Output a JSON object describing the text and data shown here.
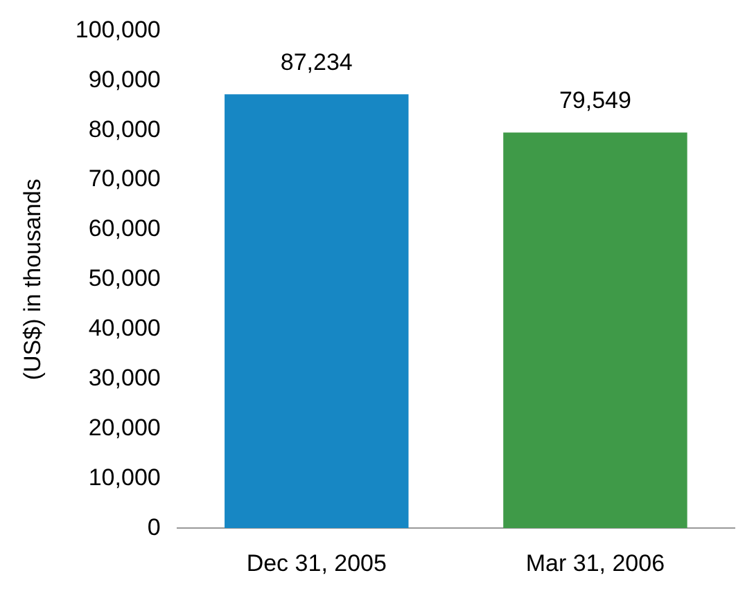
{
  "chart_data": {
    "type": "bar",
    "ylabel": "(US$) in thousands",
    "categories": [
      "Dec 31, 2005",
      "Mar 31, 2006"
    ],
    "values": [
      87234,
      79549
    ],
    "value_labels": [
      "87,234",
      "79,549"
    ],
    "colors": [
      "#1787c4",
      "#3f9a48"
    ],
    "ylim": [
      0,
      100000
    ],
    "yticks": [
      0,
      {
        "value": 10000,
        "label": "10,000"
      },
      {
        "value": 20000,
        "label": "20,000"
      },
      {
        "value": 30000,
        "label": "30,000"
      },
      {
        "value": 40000,
        "label": "40,000"
      },
      {
        "value": 50000,
        "label": "50,000"
      },
      {
        "value": 60000,
        "label": "60,000"
      },
      {
        "value": 70000,
        "label": "70,000"
      },
      {
        "value": 80000,
        "label": "80,000"
      },
      {
        "value": 90000,
        "label": "90,000"
      },
      {
        "value": 100000,
        "label": "100,000"
      }
    ],
    "grid": false,
    "legend": false
  }
}
